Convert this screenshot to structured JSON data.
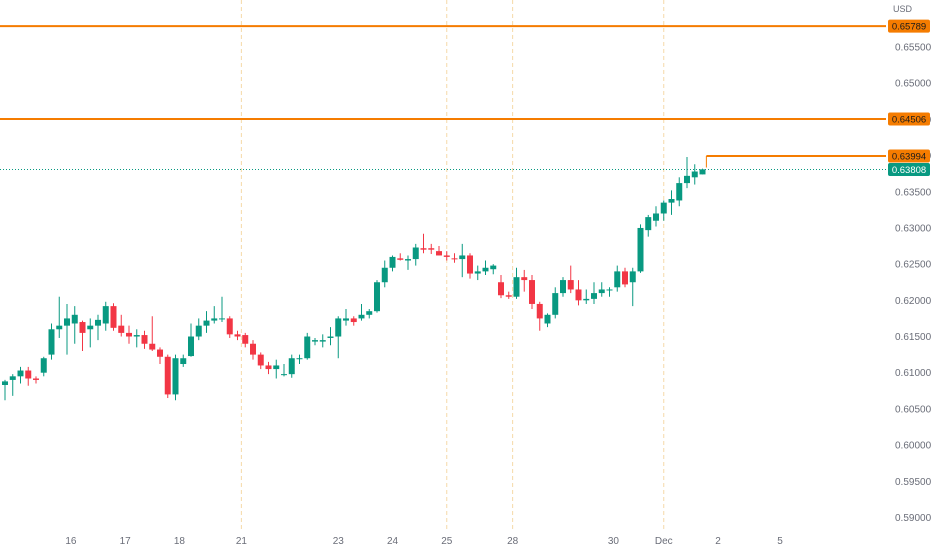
{
  "currency": "USD",
  "colors": {
    "up": "#089981",
    "down": "#f23645",
    "level": "#f57c00",
    "session_line": "#f5d9a8",
    "axis_text": "#6a6d78",
    "last_price": "#089981"
  },
  "chart_data": {
    "type": "candlestick",
    "y_axis": {
      "range": [
        0.5855,
        0.6615
      ],
      "tick_labels": [
        "0.65500",
        "0.65000",
        "0.64500",
        "0.64000",
        "0.63500",
        "0.63000",
        "0.62500",
        "0.62000",
        "0.61500",
        "0.61000",
        "0.60500",
        "0.60000",
        "0.59500",
        "0.59000"
      ],
      "tick_values": [
        0.655,
        0.65,
        0.645,
        0.64,
        0.635,
        0.63,
        0.625,
        0.62,
        0.615,
        0.61,
        0.605,
        0.6,
        0.595,
        0.59
      ]
    },
    "x_axis": {
      "tick_labels": [
        "16",
        "17",
        "18",
        "21",
        "23",
        "24",
        "25",
        "28",
        "30",
        "Dec",
        "2",
        "5"
      ],
      "tick_candle_index": [
        8.5,
        15.5,
        22.5,
        30.5,
        43,
        50,
        57,
        65.5,
        78.5,
        85,
        92,
        100
      ]
    },
    "session_separators": [
      30.5,
      57,
      65.5,
      85
    ],
    "horizontal_levels": [
      {
        "price": 0.65789,
        "label": "0.65789"
      },
      {
        "price": 0.64506,
        "label": "0.64506"
      },
      {
        "price": 0.63994,
        "label": "0.63994",
        "start_candle": 90.5
      }
    ],
    "last_price": {
      "price": 0.63808,
      "label": "0.63808"
    },
    "candles": [
      [
        0.6083,
        0.609,
        0.6062,
        0.6088
      ],
      [
        0.609,
        0.6098,
        0.6068,
        0.6095
      ],
      [
        0.6095,
        0.6108,
        0.6085,
        0.6103
      ],
      [
        0.6103,
        0.6108,
        0.6082,
        0.6092
      ],
      [
        0.6092,
        0.6095,
        0.6085,
        0.609
      ],
      [
        0.61,
        0.6122,
        0.6095,
        0.612
      ],
      [
        0.6125,
        0.6168,
        0.6118,
        0.616
      ],
      [
        0.616,
        0.6205,
        0.6148,
        0.6165
      ],
      [
        0.6165,
        0.6195,
        0.6125,
        0.6175
      ],
      [
        0.6168,
        0.6192,
        0.614,
        0.618
      ],
      [
        0.617,
        0.6172,
        0.613,
        0.6155
      ],
      [
        0.616,
        0.6175,
        0.6135,
        0.6165
      ],
      [
        0.6165,
        0.618,
        0.6145,
        0.6173
      ],
      [
        0.6168,
        0.6198,
        0.6158,
        0.6192
      ],
      [
        0.6192,
        0.6196,
        0.6158,
        0.6162
      ],
      [
        0.6165,
        0.618,
        0.615,
        0.6155
      ],
      [
        0.6155,
        0.6165,
        0.614,
        0.615
      ],
      [
        0.615,
        0.616,
        0.6135,
        0.6152
      ],
      [
        0.6152,
        0.6158,
        0.6133,
        0.614
      ],
      [
        0.614,
        0.6178,
        0.613,
        0.6132
      ],
      [
        0.6132,
        0.6135,
        0.6112,
        0.6122
      ],
      [
        0.6122,
        0.6125,
        0.6065,
        0.607
      ],
      [
        0.607,
        0.6125,
        0.6062,
        0.612
      ],
      [
        0.6112,
        0.6125,
        0.6108,
        0.612
      ],
      [
        0.6123,
        0.6168,
        0.6122,
        0.615
      ],
      [
        0.615,
        0.6175,
        0.6145,
        0.6165
      ],
      [
        0.6165,
        0.6185,
        0.6155,
        0.6172
      ],
      [
        0.6172,
        0.6192,
        0.6168,
        0.6175
      ],
      [
        0.6175,
        0.6205,
        0.617,
        0.6175
      ],
      [
        0.6175,
        0.6178,
        0.6148,
        0.6153
      ],
      [
        0.6153,
        0.6158,
        0.6145,
        0.615
      ],
      [
        0.6152,
        0.6155,
        0.6135,
        0.614
      ],
      [
        0.614,
        0.6145,
        0.6118,
        0.6125
      ],
      [
        0.6125,
        0.6128,
        0.6105,
        0.611
      ],
      [
        0.611,
        0.6115,
        0.6098,
        0.6105
      ],
      [
        0.6105,
        0.6118,
        0.6092,
        0.611
      ],
      [
        0.6097,
        0.6112,
        0.6095,
        0.6098
      ],
      [
        0.6098,
        0.6125,
        0.6093,
        0.612
      ],
      [
        0.612,
        0.6125,
        0.6112,
        0.612
      ],
      [
        0.612,
        0.6155,
        0.6118,
        0.615
      ],
      [
        0.6143,
        0.6148,
        0.6138,
        0.6145
      ],
      [
        0.6143,
        0.6153,
        0.6135,
        0.6145
      ],
      [
        0.6148,
        0.6163,
        0.6138,
        0.615
      ],
      [
        0.615,
        0.6178,
        0.612,
        0.6175
      ],
      [
        0.6172,
        0.6188,
        0.6165,
        0.6175
      ],
      [
        0.6175,
        0.6178,
        0.6165,
        0.617
      ],
      [
        0.6175,
        0.6195,
        0.6172,
        0.618
      ],
      [
        0.618,
        0.6188,
        0.6175,
        0.6185
      ],
      [
        0.6185,
        0.6228,
        0.6183,
        0.6225
      ],
      [
        0.6225,
        0.6255,
        0.6218,
        0.6245
      ],
      [
        0.6245,
        0.6262,
        0.624,
        0.626
      ],
      [
        0.6258,
        0.6265,
        0.6255,
        0.6256
      ],
      [
        0.6255,
        0.6262,
        0.6242,
        0.6257
      ],
      [
        0.6257,
        0.6278,
        0.6248,
        0.6273
      ],
      [
        0.6272,
        0.6292,
        0.6265,
        0.627
      ],
      [
        0.6272,
        0.6278,
        0.6264,
        0.627
      ],
      [
        0.6268,
        0.6275,
        0.6262,
        0.6262
      ],
      [
        0.6262,
        0.6268,
        0.6255,
        0.626
      ],
      [
        0.6258,
        0.6265,
        0.6252,
        0.6257
      ],
      [
        0.6257,
        0.6278,
        0.6232,
        0.6262
      ],
      [
        0.6262,
        0.6265,
        0.623,
        0.6237
      ],
      [
        0.6237,
        0.6248,
        0.6228,
        0.624
      ],
      [
        0.624,
        0.6255,
        0.6235,
        0.6245
      ],
      [
        0.6243,
        0.625,
        0.6236,
        0.6248
      ],
      [
        0.6225,
        0.6235,
        0.6203,
        0.6207
      ],
      [
        0.6207,
        0.6212,
        0.6202,
        0.6205
      ],
      [
        0.6205,
        0.6245,
        0.6202,
        0.6232
      ],
      [
        0.6232,
        0.6242,
        0.6212,
        0.6228
      ],
      [
        0.6228,
        0.6235,
        0.6188,
        0.6195
      ],
      [
        0.6195,
        0.6198,
        0.6158,
        0.6175
      ],
      [
        0.6168,
        0.6182,
        0.6163,
        0.618
      ],
      [
        0.618,
        0.6218,
        0.6175,
        0.621
      ],
      [
        0.621,
        0.6232,
        0.6205,
        0.6228
      ],
      [
        0.6228,
        0.6248,
        0.621,
        0.6215
      ],
      [
        0.6215,
        0.6228,
        0.6193,
        0.62
      ],
      [
        0.62,
        0.6215,
        0.6195,
        0.6202
      ],
      [
        0.6202,
        0.6225,
        0.6195,
        0.621
      ],
      [
        0.621,
        0.6225,
        0.6205,
        0.6215
      ],
      [
        0.6215,
        0.6218,
        0.6205,
        0.6215
      ],
      [
        0.6218,
        0.6248,
        0.6212,
        0.624
      ],
      [
        0.624,
        0.6245,
        0.6218,
        0.6222
      ],
      [
        0.6225,
        0.6245,
        0.6192,
        0.624
      ],
      [
        0.624,
        0.6305,
        0.6238,
        0.63
      ],
      [
        0.6297,
        0.6318,
        0.6288,
        0.6315
      ],
      [
        0.631,
        0.633,
        0.6302,
        0.632
      ],
      [
        0.632,
        0.6338,
        0.631,
        0.6335
      ],
      [
        0.6335,
        0.6352,
        0.6318,
        0.634
      ],
      [
        0.6338,
        0.637,
        0.633,
        0.6362
      ],
      [
        0.6362,
        0.6398,
        0.6355,
        0.6372
      ],
      [
        0.637,
        0.6388,
        0.636,
        0.6378
      ],
      [
        0.6374,
        0.6382,
        0.6374,
        0.6381
      ]
    ]
  }
}
